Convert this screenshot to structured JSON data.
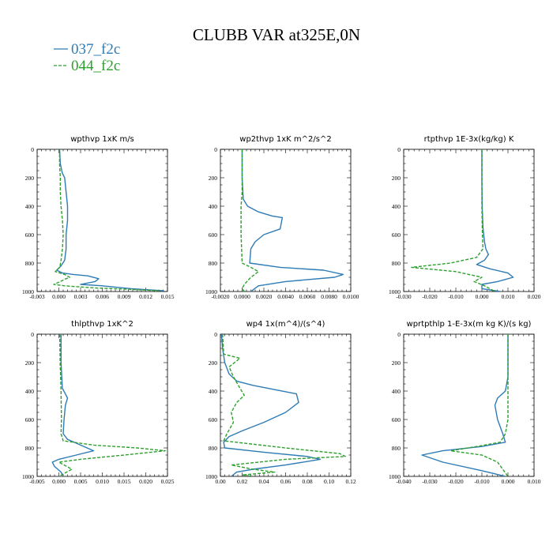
{
  "title": "CLUBB VAR at325E,0N",
  "legend": [
    {
      "label": "037_f2c",
      "color": "#2e7bb5",
      "dash": ""
    },
    {
      "label": "044_f2c",
      "color": "#2ca02c",
      "dash": "4,2"
    }
  ],
  "chart_data": [
    {
      "type": "line",
      "title": "wpthvp  1xK m/s",
      "xlim": [
        -0.003,
        0.015
      ],
      "ylim": [
        1000,
        0
      ],
      "xticks": [
        "-0.003",
        "0.000",
        "0.003",
        "0.006",
        "0.009",
        "0.012",
        "0.015"
      ],
      "yticks": [
        "0",
        "200",
        "400",
        "600",
        "800",
        "1000"
      ],
      "series": [
        {
          "name": "037_f2c",
          "x": [
            0.0001,
            0.0002,
            0.0004,
            0.0005,
            0.0008,
            0.001,
            0.0012,
            0.0012,
            0.001,
            0.001,
            0.0008,
            0.0003,
            -0.0003,
            0.0005,
            0.002,
            0.004,
            0.0055,
            0.005,
            0.003,
            0.006,
            0.01,
            0.0145
          ],
          "y": [
            0,
            100,
            150,
            170,
            200,
            300,
            400,
            500,
            600,
            700,
            780,
            820,
            850,
            870,
            880,
            890,
            910,
            930,
            950,
            960,
            980,
            995
          ]
        },
        {
          "name": "044_f2c",
          "x": [
            0.0001,
            0.0001,
            0.0002,
            0.0002,
            0.0003,
            0.0005,
            0.0006,
            0.0005,
            0.0003,
            0.0002,
            0.0001,
            -0.0005,
            0.0008,
            0.0015,
            0.001,
            0.0002,
            -0.0007,
            0.0008,
            0.005,
            0.01,
            0.014
          ],
          "y": [
            0,
            100,
            200,
            300,
            400,
            500,
            600,
            700,
            780,
            810,
            830,
            860,
            880,
            900,
            910,
            930,
            950,
            960,
            975,
            985,
            995
          ]
        }
      ]
    },
    {
      "type": "line",
      "title": "wp2thvp  1xK m^2/s^2",
      "xlim": [
        -0.002,
        0.01
      ],
      "ylim": [
        1000,
        0
      ],
      "xticks": [
        "-0.0020",
        "0.0000",
        "0.0020",
        "0.0040",
        "0.0060",
        "0.0080",
        "0.0100"
      ],
      "yticks": [
        "0",
        "200",
        "400",
        "600",
        "800",
        "1000"
      ],
      "series": [
        {
          "name": "037_f2c",
          "x": [
            0.0,
            0.0,
            0.0001,
            0.0005,
            0.0015,
            0.0028,
            0.0037,
            0.0035,
            0.002,
            0.0012,
            0.0008,
            0.0007,
            0.0035,
            0.0075,
            0.0093,
            0.0085,
            0.004,
            0.0015,
            0.0008
          ],
          "y": [
            0,
            200,
            350,
            400,
            440,
            470,
            480,
            560,
            600,
            650,
            700,
            800,
            830,
            850,
            880,
            900,
            930,
            960,
            1000
          ]
        },
        {
          "name": "044_f2c",
          "x": [
            0.0,
            0.0,
            -0.0001,
            -0.0001,
            0.0,
            0.0008,
            0.0015,
            0.0008,
            0.0002,
            0.0,
            0.0002
          ],
          "y": [
            0,
            300,
            400,
            600,
            800,
            830,
            860,
            900,
            950,
            980,
            1000
          ]
        }
      ]
    },
    {
      "type": "line",
      "title": "rtpthvp  1E-3x(kg/kg) K",
      "xlim": [
        -0.03,
        0.02
      ],
      "ylim": [
        1000,
        0
      ],
      "xticks": [
        "-0.030",
        "-0.020",
        "-0.010",
        "0.000",
        "0.010",
        "0.020"
      ],
      "yticks": [
        "0",
        "200",
        "400",
        "600",
        "800",
        "1000"
      ],
      "series": [
        {
          "name": "037_f2c",
          "x": [
            0.0,
            0.0,
            0.0001,
            0.0004,
            0.001,
            0.0015,
            0.0025,
            0.001,
            -0.002,
            0.003,
            0.01,
            0.012,
            0.006,
            0.0,
            0.0,
            0.007
          ],
          "y": [
            0,
            200,
            400,
            550,
            650,
            700,
            740,
            780,
            810,
            840,
            870,
            900,
            930,
            950,
            980,
            1000
          ]
        },
        {
          "name": "044_f2c",
          "x": [
            0.0,
            0.0,
            0.0,
            0.0002,
            0.0004,
            -0.002,
            -0.012,
            -0.027,
            -0.01,
            0.0,
            -0.003,
            0.001,
            0.005
          ],
          "y": [
            0,
            200,
            400,
            600,
            700,
            760,
            800,
            830,
            860,
            900,
            930,
            960,
            1000
          ]
        }
      ]
    },
    {
      "type": "line",
      "title": "thlpthvp  1xK^2",
      "xlim": [
        -0.005,
        0.025
      ],
      "ylim": [
        1000,
        0
      ],
      "xticks": [
        "-0.005",
        "0.000",
        "0.005",
        "0.010",
        "0.015",
        "0.020",
        "0.025"
      ],
      "yticks": [
        "0",
        "200",
        "400",
        "600",
        "800",
        "1000"
      ],
      "series": [
        {
          "name": "037_f2c",
          "x": [
            0.0005,
            0.0005,
            0.0008,
            0.0015,
            0.002,
            0.0015,
            0.0012,
            0.001,
            0.002,
            0.005,
            0.008,
            0.004,
            0.0,
            -0.0015,
            -0.001,
            0.0005,
            0.001
          ],
          "y": [
            0,
            200,
            380,
            420,
            450,
            500,
            600,
            700,
            740,
            780,
            820,
            850,
            880,
            900,
            930,
            970,
            1000
          ]
        },
        {
          "name": "044_f2c",
          "x": [
            0.0002,
            0.0003,
            0.0005,
            0.0006,
            0.0005,
            0.001,
            0.008,
            0.018,
            0.0245,
            0.015,
            0.005,
            0.0,
            0.003,
            0.0
          ],
          "y": [
            0,
            200,
            400,
            600,
            700,
            750,
            780,
            800,
            820,
            850,
            880,
            900,
            950,
            1000
          ]
        }
      ]
    },
    {
      "type": "line",
      "title": "wp4  1x(m^4)/(s^4)",
      "xlim": [
        0.0,
        0.12
      ],
      "ylim": [
        1000,
        0
      ],
      "xticks": [
        "0.00",
        "0.02",
        "0.04",
        "0.06",
        "0.08",
        "0.10",
        "0.12"
      ],
      "yticks": [
        "0",
        "200",
        "400",
        "600",
        "800",
        "1000"
      ],
      "series": [
        {
          "name": "037_f2c",
          "x": [
            0.001,
            0.002,
            0.004,
            0.008,
            0.015,
            0.03,
            0.05,
            0.07,
            0.072,
            0.06,
            0.04,
            0.02,
            0.008,
            0.003,
            0.004,
            0.04,
            0.08,
            0.092,
            0.06,
            0.03,
            0.015,
            0.01
          ],
          "y": [
            0,
            100,
            200,
            280,
            330,
            360,
            390,
            420,
            480,
            550,
            620,
            680,
            720,
            760,
            800,
            830,
            860,
            880,
            920,
            950,
            970,
            1000
          ]
        },
        {
          "name": "044_f2c",
          "x": [
            0.002,
            0.003,
            0.018,
            0.008,
            0.012,
            0.018,
            0.022,
            0.015,
            0.01,
            0.012,
            0.006,
            0.003,
            0.06,
            0.11,
            0.115,
            0.06,
            0.01,
            0.03,
            0.05,
            0.02,
            0.03
          ],
          "y": [
            0,
            140,
            170,
            230,
            300,
            380,
            430,
            480,
            550,
            620,
            700,
            750,
            800,
            840,
            860,
            880,
            920,
            950,
            970,
            990,
            1000
          ]
        }
      ]
    },
    {
      "type": "line",
      "title": "wprtpthlp  1-E-3x(m kg K)/(s kg)",
      "xlim": [
        -0.04,
        0.01
      ],
      "ylim": [
        1000,
        0
      ],
      "xticks": [
        "-0.040",
        "-0.030",
        "-0.020",
        "-0.010",
        "0.000",
        "0.010"
      ],
      "yticks": [
        "0",
        "200",
        "400",
        "600",
        "800",
        "1000"
      ],
      "series": [
        {
          "name": "037_f2c",
          "x": [
            0.0,
            0.0,
            -0.001,
            -0.004,
            -0.005,
            -0.004,
            -0.002,
            -0.001,
            -0.01,
            -0.025,
            -0.033,
            -0.025,
            -0.01,
            -0.001
          ],
          "y": [
            0,
            300,
            400,
            450,
            500,
            600,
            700,
            760,
            790,
            820,
            850,
            900,
            960,
            1000
          ]
        },
        {
          "name": "044_f2c",
          "x": [
            0.0,
            0.0,
            0.0,
            0.0,
            -0.001,
            -0.003,
            -0.012,
            -0.022,
            -0.01,
            -0.004,
            -0.002,
            0.0
          ],
          "y": [
            0,
            200,
            400,
            600,
            700,
            760,
            790,
            820,
            850,
            900,
            950,
            1000
          ]
        }
      ]
    }
  ]
}
